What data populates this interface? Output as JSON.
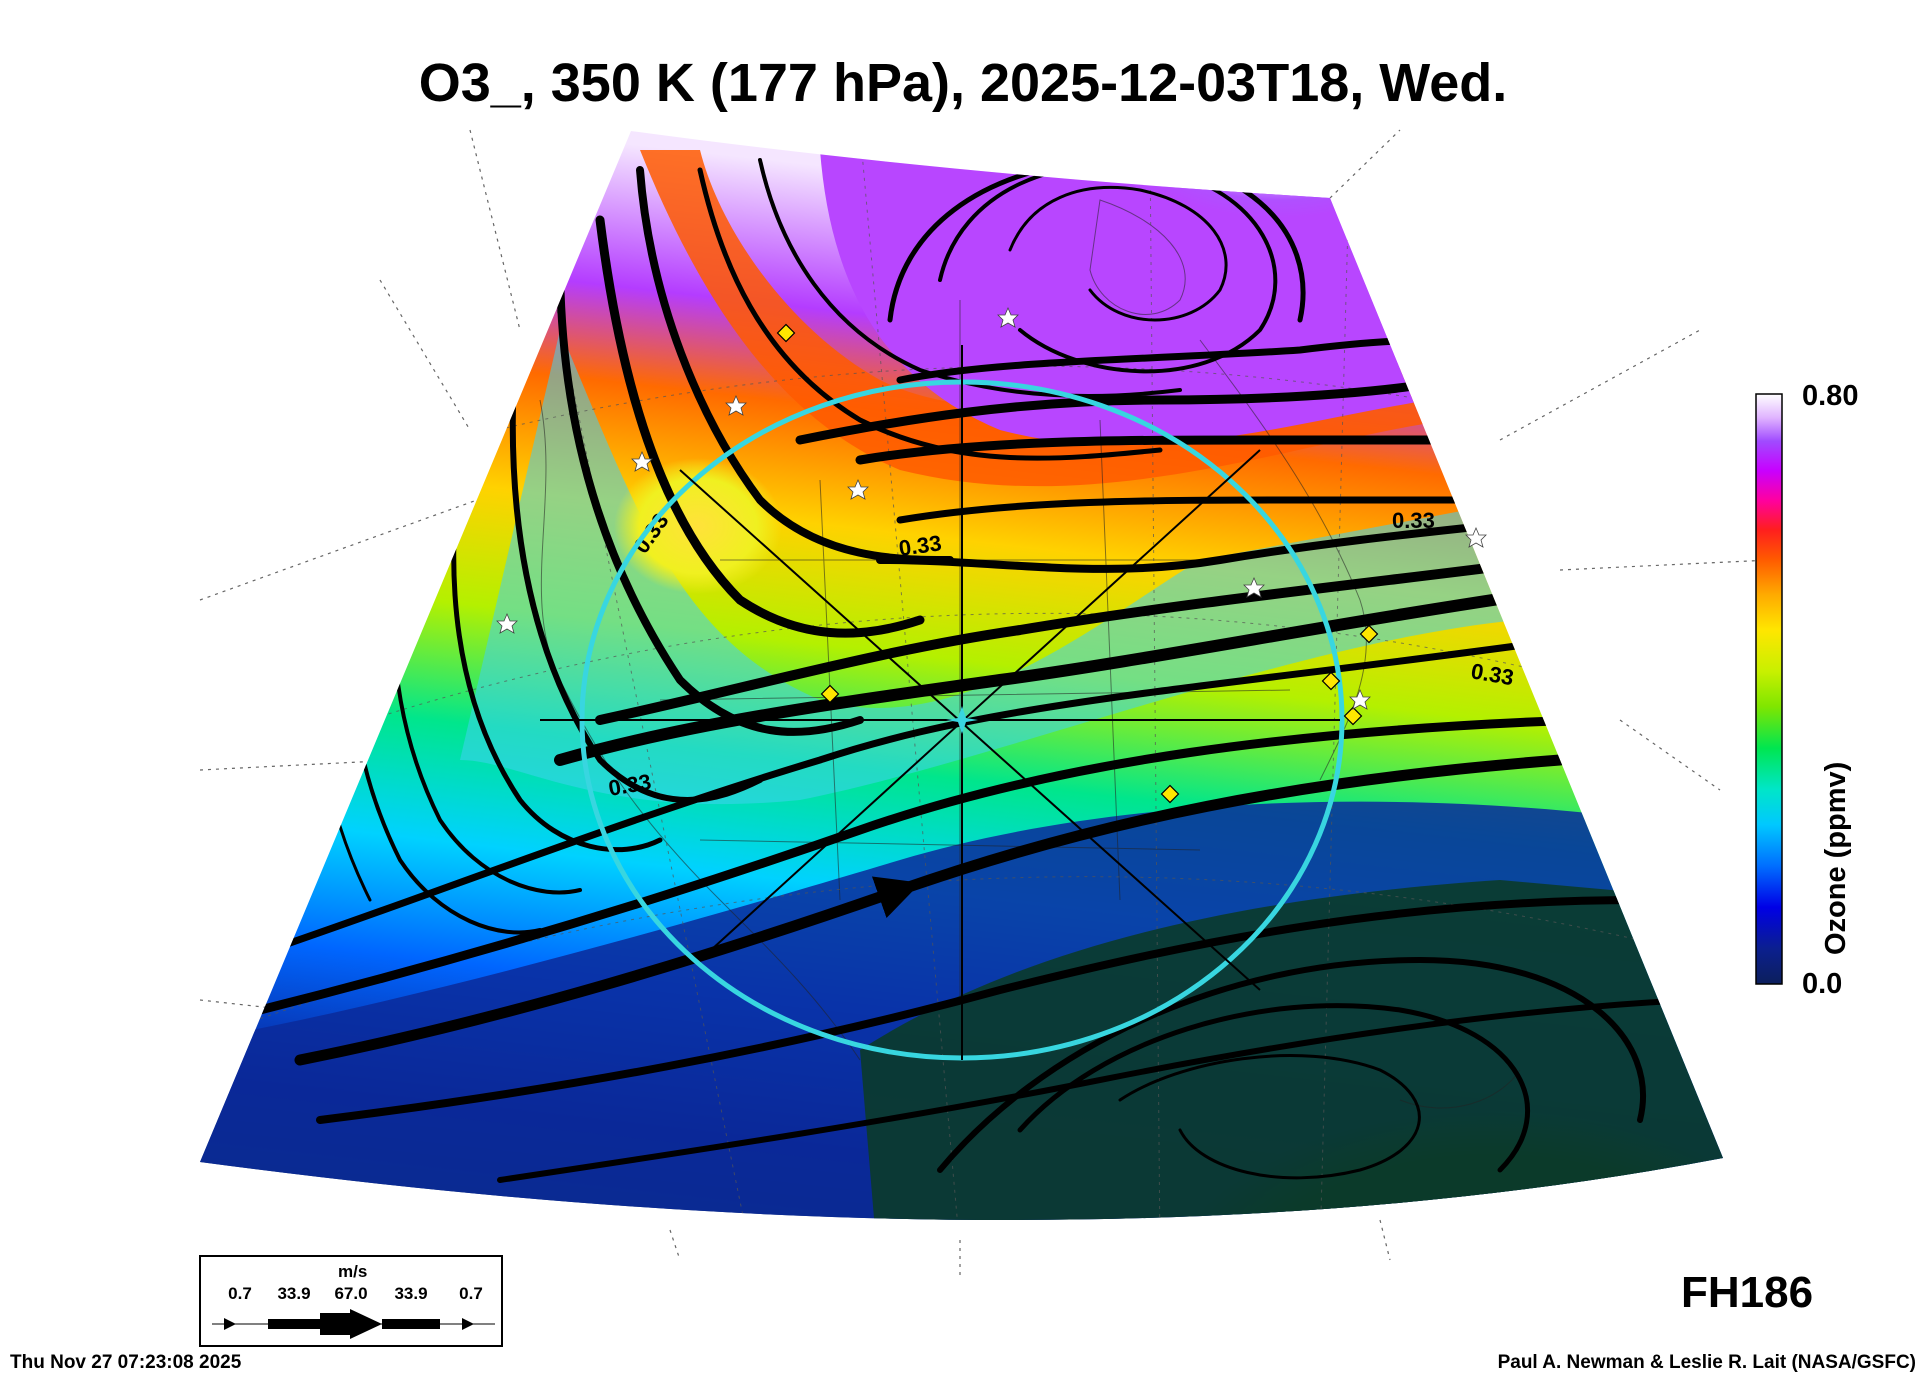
{
  "title": "O3_, 350 K (177 hPa), 2025-12-03T18, Wed.",
  "colorbar": {
    "max_label": "0.80",
    "min_label": "0.0",
    "title": "Ozone (ppmv)",
    "stops": [
      "#0c1f5c",
      "#0b1f8f",
      "#0000e6",
      "#006eff",
      "#00c8ff",
      "#00e6c8",
      "#00e650",
      "#7fe600",
      "#c8f000",
      "#ffe600",
      "#ffaa00",
      "#ff5a00",
      "#ff1e1e",
      "#ff00a0",
      "#c800ff",
      "#a04bff",
      "#e0b4ff",
      "#ffffff"
    ]
  },
  "contour_label": "0.33",
  "wind_legend": {
    "unit": "m/s",
    "labels": [
      "0.7",
      "33.9",
      "67.0",
      "33.9",
      "0.7"
    ]
  },
  "forecast_hour": "FH186",
  "timestamp": "Thu Nov 27 07:23:08 2025",
  "credit": "Paul A. Newman & Leslie R. Lait (NASA/GSFC)",
  "colors": {
    "circle": "#38d6e0",
    "low_ozone": "#0b3b2a",
    "high_ozone": "#f0d8ff"
  }
}
